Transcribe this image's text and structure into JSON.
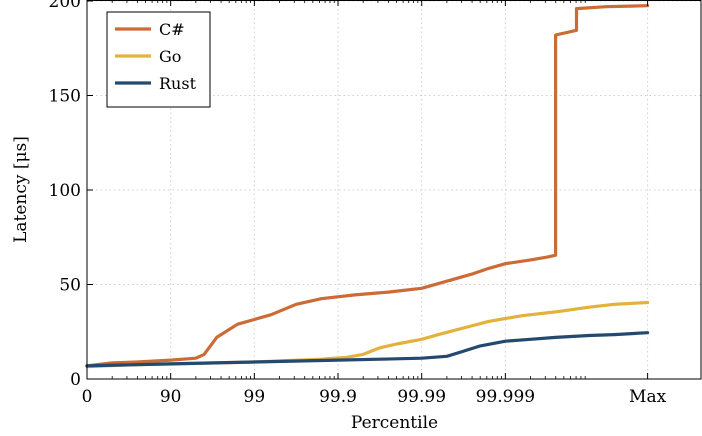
{
  "chart_data": {
    "type": "line",
    "xlabel": "Percentile",
    "ylabel": "Latency [μs]",
    "ylim": [
      0,
      200
    ],
    "xlim": [
      0,
      6
    ],
    "x_scale": "inverse-log percentile",
    "yticks": [
      "0",
      "50",
      "100",
      "150",
      "200"
    ],
    "xticks": [
      {
        "x": 0,
        "label": "0"
      },
      {
        "x": 1,
        "label": "90"
      },
      {
        "x": 2,
        "label": "99"
      },
      {
        "x": 3,
        "label": "99.9"
      },
      {
        "x": 4,
        "label": "99.99"
      },
      {
        "x": 5,
        "label": "99.999"
      },
      {
        "x": 6.7,
        "label": "Max"
      }
    ],
    "grid": true,
    "legend_position": "top-left",
    "series": [
      {
        "name": "C#",
        "color": "#cc6b35",
        "points": [
          [
            0,
            7
          ],
          [
            0.3,
            8.5
          ],
          [
            0.6,
            9
          ],
          [
            1.0,
            10
          ],
          [
            1.3,
            11
          ],
          [
            1.4,
            13
          ],
          [
            1.55,
            22
          ],
          [
            1.8,
            29
          ],
          [
            2.0,
            31.5
          ],
          [
            2.2,
            34
          ],
          [
            2.5,
            39.5
          ],
          [
            2.8,
            42.5
          ],
          [
            3.2,
            44.5
          ],
          [
            3.6,
            46
          ],
          [
            4.0,
            48
          ],
          [
            4.2,
            50.5
          ],
          [
            4.4,
            53
          ],
          [
            4.6,
            55.5
          ],
          [
            4.8,
            58.5
          ],
          [
            5.0,
            61
          ],
          [
            5.3,
            63
          ],
          [
            5.5,
            64.5
          ],
          [
            5.6,
            65.5
          ],
          [
            5.6,
            182
          ],
          [
            5.85,
            184.5
          ],
          [
            5.85,
            196
          ],
          [
            6.2,
            197
          ],
          [
            6.7,
            197.5
          ]
        ]
      },
      {
        "name": "Go",
        "color": "#e3b23c",
        "points": [
          [
            0,
            6.5
          ],
          [
            0.5,
            7.5
          ],
          [
            1.0,
            8
          ],
          [
            2.0,
            9
          ],
          [
            2.8,
            10.5
          ],
          [
            3.1,
            11.5
          ],
          [
            3.3,
            13
          ],
          [
            3.5,
            16.5
          ],
          [
            3.7,
            18.5
          ],
          [
            4.0,
            21
          ],
          [
            4.2,
            23.5
          ],
          [
            4.5,
            27
          ],
          [
            4.8,
            30.5
          ],
          [
            5.2,
            33.5
          ],
          [
            5.6,
            35.5
          ],
          [
            6.0,
            38
          ],
          [
            6.3,
            39.5
          ],
          [
            6.7,
            40.5
          ]
        ]
      },
      {
        "name": "Rust",
        "color": "#24496f",
        "points": [
          [
            0,
            7
          ],
          [
            1.0,
            8
          ],
          [
            2.0,
            9
          ],
          [
            3.0,
            10
          ],
          [
            3.5,
            10.5
          ],
          [
            4.0,
            11
          ],
          [
            4.3,
            12
          ],
          [
            4.45,
            14
          ],
          [
            4.7,
            17.5
          ],
          [
            5.0,
            20
          ],
          [
            5.3,
            21
          ],
          [
            5.6,
            22
          ],
          [
            6.0,
            23
          ],
          [
            6.3,
            23.5
          ],
          [
            6.7,
            24.5
          ]
        ]
      }
    ]
  }
}
